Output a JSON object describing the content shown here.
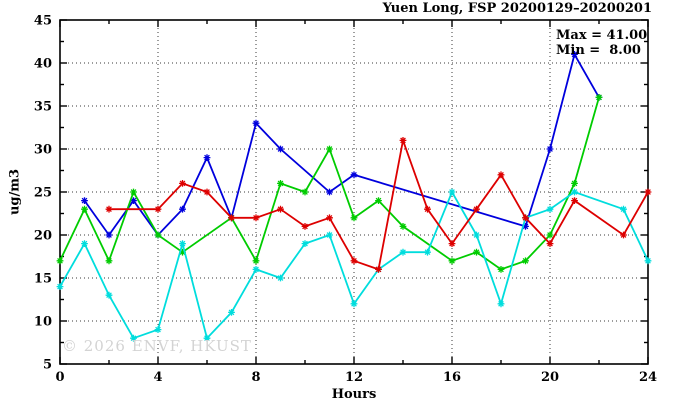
{
  "title": "Yuen Long, FSP 20200129–20200201",
  "annotations": {
    "max_label": "Max = 41.00",
    "min_label": "Min =  8.00"
  },
  "watermark": "© 2026 ENVF, HKUST",
  "chart_data": {
    "type": "line",
    "title": "Yuen Long, FSP 20200129–20200201",
    "xlabel": "Hours",
    "ylabel": "ug/m3",
    "xlim": [
      0,
      24
    ],
    "ylim": [
      5,
      45
    ],
    "xticks_major": [
      0,
      4,
      8,
      12,
      16,
      20,
      24
    ],
    "xtick_minor_step": 2,
    "ytick_major_step": 5,
    "ytick_minor_step": 2.5,
    "grid": {
      "x_at": [
        4,
        8,
        12,
        16,
        20
      ],
      "y_at": [
        10,
        15,
        20,
        25,
        30,
        35,
        40
      ]
    },
    "legend_position": "none",
    "stat_max": 41.0,
    "stat_min": 8.0,
    "marker": "asterisk",
    "series": [
      {
        "name": "series-blue",
        "color": "#0000dd",
        "points": [
          [
            1,
            24
          ],
          [
            2,
            20
          ],
          [
            3,
            24
          ],
          [
            4,
            20
          ],
          [
            5,
            23
          ],
          [
            6,
            29
          ],
          [
            7,
            22
          ],
          [
            8,
            33
          ],
          [
            9,
            30
          ],
          [
            11,
            25
          ],
          [
            12,
            27
          ],
          [
            19,
            21
          ],
          [
            20,
            30
          ],
          [
            21,
            41
          ],
          [
            22,
            36
          ]
        ]
      },
      {
        "name": "series-green",
        "color": "#00cc00",
        "points": [
          [
            0,
            17
          ],
          [
            1,
            23
          ],
          [
            2,
            17
          ],
          [
            3,
            25
          ],
          [
            4,
            20
          ],
          [
            5,
            18
          ],
          [
            7,
            22
          ],
          [
            8,
            17
          ],
          [
            9,
            26
          ],
          [
            10,
            25
          ],
          [
            11,
            30
          ],
          [
            12,
            22
          ],
          [
            13,
            24
          ],
          [
            14,
            21
          ],
          [
            16,
            17
          ],
          [
            17,
            18
          ],
          [
            18,
            16
          ],
          [
            19,
            17
          ],
          [
            20,
            20
          ],
          [
            21,
            26
          ],
          [
            22,
            36
          ]
        ]
      },
      {
        "name": "series-cyan",
        "color": "#00dddd",
        "points": [
          [
            0,
            14
          ],
          [
            1,
            19
          ],
          [
            2,
            13
          ],
          [
            3,
            8
          ],
          [
            4,
            9
          ],
          [
            5,
            19
          ],
          [
            6,
            8
          ],
          [
            7,
            11
          ],
          [
            8,
            16
          ],
          [
            9,
            15
          ],
          [
            10,
            19
          ],
          [
            11,
            20
          ],
          [
            12,
            12
          ],
          [
            13,
            16
          ],
          [
            14,
            18
          ],
          [
            15,
            18
          ],
          [
            16,
            25
          ],
          [
            17,
            20
          ],
          [
            18,
            12
          ],
          [
            19,
            22
          ],
          [
            20,
            23
          ],
          [
            21,
            25
          ],
          [
            23,
            23
          ],
          [
            24,
            17
          ]
        ]
      },
      {
        "name": "series-red",
        "color": "#dd0000",
        "points": [
          [
            2,
            23
          ],
          [
            4,
            23
          ],
          [
            5,
            26
          ],
          [
            6,
            25
          ],
          [
            7,
            22
          ],
          [
            8,
            22
          ],
          [
            9,
            23
          ],
          [
            10,
            21
          ],
          [
            11,
            22
          ],
          [
            12,
            17
          ],
          [
            13,
            16
          ],
          [
            14,
            31
          ],
          [
            15,
            23
          ],
          [
            16,
            19
          ],
          [
            17,
            23
          ],
          [
            18,
            27
          ],
          [
            19,
            22
          ],
          [
            20,
            19
          ],
          [
            21,
            24
          ],
          [
            23,
            20
          ],
          [
            24,
            25
          ]
        ]
      }
    ]
  }
}
